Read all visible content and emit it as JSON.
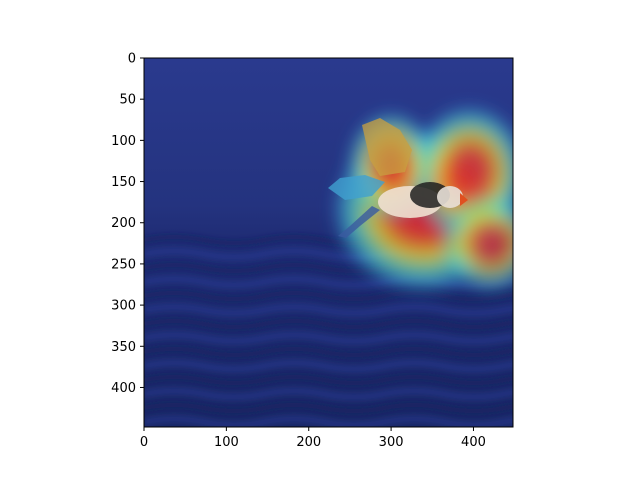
{
  "chart_data": {
    "type": "heatmap",
    "description_role": "attention heatmap overlaid on image",
    "title": "",
    "xlabel": "",
    "ylabel": "",
    "xlim": [
      0,
      448
    ],
    "ylim": [
      448,
      0
    ],
    "x_ticks": [
      0,
      100,
      200,
      300,
      400
    ],
    "y_ticks": [
      0,
      50,
      100,
      150,
      200,
      250,
      300,
      350,
      400
    ],
    "x_tick_labels": [
      "0",
      "100",
      "200",
      "300",
      "400"
    ],
    "y_tick_labels": [
      "0",
      "50",
      "100",
      "150",
      "200",
      "250",
      "300",
      "350",
      "400"
    ],
    "colormap": "jet",
    "grid": false,
    "background_image": "puffin flying over ocean",
    "hotspots": [
      {
        "x": 340,
        "y": 185,
        "rx": 95,
        "ry": 85,
        "intensity": 1.0
      },
      {
        "x": 395,
        "y": 140,
        "rx": 60,
        "ry": 70,
        "intensity": 0.95
      },
      {
        "x": 300,
        "y": 130,
        "rx": 45,
        "ry": 55,
        "intensity": 0.9
      },
      {
        "x": 420,
        "y": 225,
        "rx": 50,
        "ry": 50,
        "intensity": 0.85
      }
    ]
  },
  "colors": {
    "ocean_dark": "#1a2a6e",
    "ocean_mid": "#2a3a8e",
    "heat_red": "#d4102a",
    "heat_yellow": "#e8d020",
    "heat_cyan": "#40d8e8",
    "axis": "#000000"
  }
}
